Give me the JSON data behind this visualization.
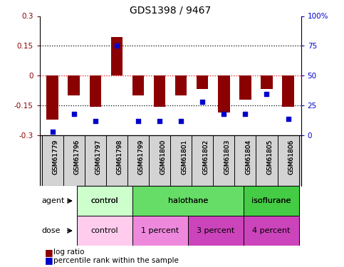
{
  "title": "GDS1398 / 9467",
  "samples": [
    "GSM61779",
    "GSM61796",
    "GSM61797",
    "GSM61798",
    "GSM61799",
    "GSM61800",
    "GSM61801",
    "GSM61802",
    "GSM61803",
    "GSM61804",
    "GSM61805",
    "GSM61806"
  ],
  "log_ratio": [
    -0.22,
    -0.1,
    -0.155,
    0.195,
    -0.1,
    -0.155,
    -0.1,
    -0.065,
    -0.185,
    -0.12,
    -0.065,
    -0.155
  ],
  "percentile_rank": [
    3,
    18,
    12,
    75,
    12,
    12,
    12,
    28,
    18,
    18,
    35,
    14
  ],
  "bar_color": "#8B0000",
  "dot_color": "#0000CD",
  "ylim_left": [
    -0.3,
    0.3
  ],
  "ylim_right": [
    0,
    100
  ],
  "yticks_left": [
    -0.3,
    -0.15,
    0,
    0.15,
    0.3
  ],
  "yticks_right": [
    0,
    25,
    50,
    75,
    100
  ],
  "hlines": [
    -0.15,
    0,
    0.15
  ],
  "agent_groups": [
    {
      "label": "control",
      "start": 0,
      "end": 3,
      "color": "#CCFFCC"
    },
    {
      "label": "halothane",
      "start": 3,
      "end": 9,
      "color": "#66DD66"
    },
    {
      "label": "isoflurane",
      "start": 9,
      "end": 12,
      "color": "#44CC44"
    }
  ],
  "dose_groups": [
    {
      "label": "control",
      "start": 0,
      "end": 3,
      "color": "#FFCCEE"
    },
    {
      "label": "1 percent",
      "start": 3,
      "end": 6,
      "color": "#EE88DD"
    },
    {
      "label": "3 percent",
      "start": 6,
      "end": 9,
      "color": "#CC44BB"
    },
    {
      "label": "4 percent",
      "start": 9,
      "end": 12,
      "color": "#CC44BB"
    }
  ],
  "legend_bar_label": "log ratio",
  "legend_dot_label": "percentile rank within the sample"
}
